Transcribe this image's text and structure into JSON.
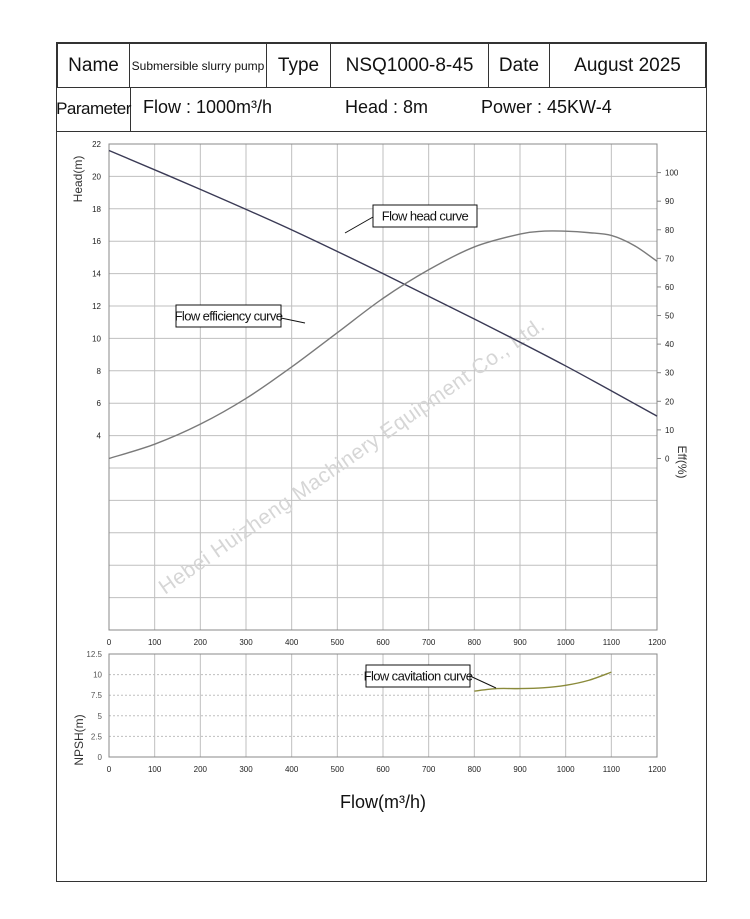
{
  "header": {
    "name_label": "Name",
    "name_value": "Submersible slurry pump",
    "type_label": "Type",
    "type_value": "NSQ1000-8-45",
    "date_label": "Date",
    "date_value": "August 2025"
  },
  "parameters": {
    "label": "Parameter",
    "flow": "Flow :  1000m³/h",
    "head": "Head :  8m",
    "power": "Power : 45KW-4"
  },
  "watermark": "Hebei Huizheng Machinery Equipment Co., Ltd.",
  "colors": {
    "grid": "#bfbfbf",
    "head_curve": "#3a3a55",
    "eff_curve": "#7a7a7a",
    "npsh_curve": "#8a8a3a",
    "npsh_axis": "#8a7a3a"
  },
  "chart_data": [
    {
      "type": "line",
      "xlabel": "Flow(m³/h)",
      "ylabel": "Head(m)",
      "y2label": "Eff(%)",
      "xlim": [
        0,
        1200
      ],
      "xticks": [
        "0",
        "100",
        "200",
        "300",
        "400",
        "500",
        "600",
        "700",
        "800",
        "900",
        "1000",
        "1100",
        "1200"
      ],
      "ylim": [
        -8,
        22
      ],
      "yticks": [
        "4",
        "6",
        "8",
        "10",
        "12",
        "14",
        "16",
        "18",
        "20",
        "22"
      ],
      "y2lim": [
        -60,
        110
      ],
      "y2ticks": [
        "0",
        "10",
        "20",
        "30",
        "40",
        "50",
        "60",
        "70",
        "80",
        "90",
        "100"
      ],
      "grid": true,
      "series": [
        {
          "name": "Flow head curve",
          "axis": "left",
          "x": [
            0,
            200,
            400,
            600,
            800,
            1000,
            1200
          ],
          "y": [
            21.6,
            19.2,
            16.7,
            14.0,
            11.2,
            8.3,
            5.2
          ]
        },
        {
          "name": "Flow efficiency curve",
          "axis": "right",
          "x": [
            0,
            100,
            200,
            300,
            400,
            500,
            600,
            700,
            800,
            900,
            950,
            1000,
            1050,
            1100,
            1150,
            1200
          ],
          "y": [
            0,
            5,
            12,
            21,
            32,
            44,
            56,
            66,
            74,
            78.5,
            79.5,
            79.5,
            79,
            78,
            74.5,
            69
          ]
        }
      ],
      "annotations": [
        "Flow head curve",
        "Flow efficiency curve"
      ]
    },
    {
      "type": "line",
      "xlabel": "Flow(m³/h)",
      "ylabel": "NPSH(m)",
      "xlim": [
        0,
        1200
      ],
      "xticks": [
        "0",
        "100",
        "200",
        "300",
        "400",
        "500",
        "600",
        "700",
        "800",
        "900",
        "1000",
        "1100",
        "1200"
      ],
      "ylim": [
        0,
        12.5
      ],
      "yticks": [
        "0",
        "2.5",
        "5",
        "7.5",
        "10",
        "12.5"
      ],
      "grid": true,
      "series": [
        {
          "name": "Flow cavitation curve",
          "x": [
            800,
            850,
            900,
            950,
            1000,
            1050,
            1100
          ],
          "y": [
            8.0,
            8.3,
            8.3,
            8.4,
            8.7,
            9.3,
            10.3
          ]
        }
      ],
      "annotations": [
        "Flow cavitation curve"
      ]
    }
  ]
}
